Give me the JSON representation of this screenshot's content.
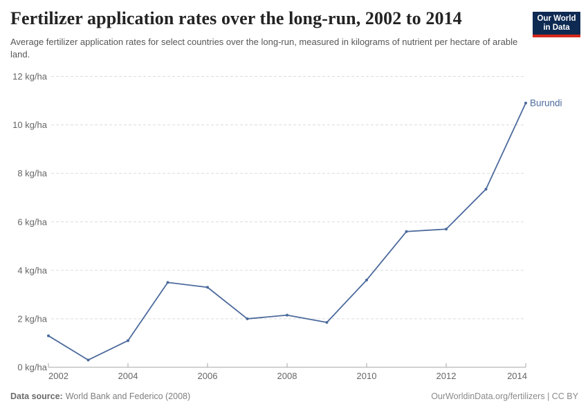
{
  "header": {
    "title": "Fertilizer application rates over the long-run, 2002 to 2014",
    "subtitle": "Average fertilizer application rates for select countries over the long-run, measured in kilograms of nutrient per hectare of arable land.",
    "logo": {
      "line1": "Our World",
      "line2": "in Data",
      "bg_color": "#0E2A52",
      "stripe_color": "#D5271D"
    }
  },
  "chart_data": {
    "type": "line",
    "title": "Fertilizer application rates over the long-run, 2002 to 2014",
    "x": [
      2002,
      2003,
      2004,
      2005,
      2006,
      2007,
      2008,
      2009,
      2010,
      2011,
      2012,
      2013,
      2014
    ],
    "series": [
      {
        "name": "Burundi",
        "color": "#4C6A9C",
        "values": [
          1.3,
          0.3,
          1.1,
          3.5,
          3.3,
          2.0,
          2.15,
          1.85,
          3.6,
          5.6,
          5.7,
          7.35,
          10.9
        ]
      }
    ],
    "xlabel": "",
    "ylabel": "kg/ha",
    "xlim": [
      2002,
      2014
    ],
    "ylim": [
      0,
      12
    ],
    "yticks": [
      {
        "value": 0,
        "label": "0 kg/ha"
      },
      {
        "value": 2,
        "label": "2 kg/ha"
      },
      {
        "value": 4,
        "label": "4 kg/ha"
      },
      {
        "value": 6,
        "label": "6 kg/ha"
      },
      {
        "value": 8,
        "label": "8 kg/ha"
      },
      {
        "value": 10,
        "label": "10 kg/ha"
      },
      {
        "value": 12,
        "label": "12 kg/ha"
      }
    ],
    "xticks": [
      {
        "value": 2002,
        "label": "2002"
      },
      {
        "value": 2004,
        "label": "2004"
      },
      {
        "value": 2006,
        "label": "2006"
      },
      {
        "value": 2008,
        "label": "2008"
      },
      {
        "value": 2010,
        "label": "2010"
      },
      {
        "value": 2012,
        "label": "2012"
      },
      {
        "value": 2014,
        "label": "2014"
      }
    ],
    "grid": "horizontal-dashed",
    "legend": "inline-end-label",
    "colors": {
      "grid": "#dcdcdc",
      "axis": "#a5a5a5",
      "tick_label": "#666666"
    }
  },
  "footer": {
    "source_label": "Data source:",
    "source_value": "World Bank and Federico (2008)",
    "attribution": "OurWorldinData.org/fertilizers | CC BY"
  }
}
